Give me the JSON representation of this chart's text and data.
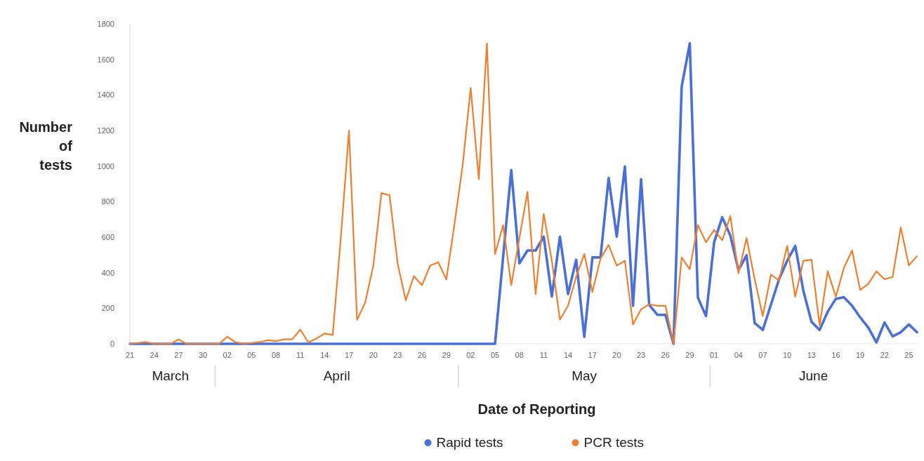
{
  "chart_data": {
    "type": "line",
    "xlabel": "Date of Reporting",
    "ylabel": "Number of tests",
    "x": [
      "--03-21",
      "--03-22",
      "--03-23",
      "--03-24",
      "--03-25",
      "--03-26",
      "--03-27",
      "--03-28",
      "--03-29",
      "--03-30",
      "--03-31",
      "--04-01",
      "--04-02",
      "--04-03",
      "--04-04",
      "--04-05",
      "--04-06",
      "--04-07",
      "--04-08",
      "--04-09",
      "--04-10",
      "--04-11",
      "--04-12",
      "--04-13",
      "--04-14",
      "--04-15",
      "--04-16",
      "--04-17",
      "--04-18",
      "--04-19",
      "--04-20",
      "--04-21",
      "--04-22",
      "--04-23",
      "--04-24",
      "--04-25",
      "--04-26",
      "--04-27",
      "--04-28",
      "--04-29",
      "--04-30",
      "--05-01",
      "--05-02",
      "--05-03",
      "--05-04",
      "--05-05",
      "--05-06",
      "--05-07",
      "--05-08",
      "--05-09",
      "--05-10",
      "--05-11",
      "--05-12",
      "--05-13",
      "--05-14",
      "--05-15",
      "--05-16",
      "--05-17",
      "--05-18",
      "--05-19",
      "--05-20",
      "--05-21",
      "--05-22",
      "--05-23",
      "--05-24",
      "--05-25",
      "--05-26",
      "--05-27",
      "--05-28",
      "--05-29",
      "--05-30",
      "--05-31",
      "--06-01",
      "--06-02",
      "--06-03",
      "--06-04",
      "--06-05",
      "--06-06",
      "--06-07",
      "--06-08",
      "--06-09",
      "--06-10",
      "--06-11",
      "--06-12",
      "--06-13",
      "--06-14",
      "--06-15",
      "--06-16",
      "--06-17",
      "--06-18",
      "--06-19",
      "--06-20",
      "--06-21",
      "--06-22",
      "--06-23",
      "--06-24",
      "--06-25",
      "--06-26"
    ],
    "series": [
      {
        "name": "Rapid tests",
        "color": "#4a6fd6",
        "values": [
          0,
          0,
          0,
          0,
          0,
          0,
          0,
          0,
          0,
          0,
          0,
          0,
          0,
          0,
          0,
          0,
          0,
          0,
          0,
          0,
          0,
          0,
          0,
          0,
          0,
          0,
          0,
          0,
          0,
          0,
          0,
          0,
          0,
          0,
          0,
          0,
          0,
          0,
          0,
          0,
          0,
          0,
          0,
          0,
          0,
          0,
          490,
          978,
          453,
          525,
          525,
          603,
          266,
          603,
          280,
          473,
          39,
          486,
          486,
          933,
          603,
          998,
          214,
          926,
          220,
          163,
          163,
          0,
          1446,
          1690,
          260,
          156,
          571,
          712,
          609,
          415,
          498,
          117,
          78,
          220,
          363,
          467,
          551,
          298,
          124,
          78,
          181,
          253,
          262,
          214,
          149,
          91,
          8,
          120,
          42,
          65,
          109,
          65
        ]
      },
      {
        "name": "PCR tests",
        "color": "#ef7f2f",
        "values": [
          0,
          5,
          10,
          0,
          0,
          0,
          25,
          0,
          0,
          0,
          0,
          0,
          40,
          10,
          0,
          5,
          10,
          20,
          15,
          25,
          25,
          80,
          8,
          30,
          58,
          50,
          600,
          1200,
          135,
          233,
          440,
          848,
          836,
          450,
          245,
          381,
          330,
          440,
          459,
          362,
          673,
          1000,
          1439,
          926,
          1690,
          505,
          668,
          330,
          595,
          855,
          280,
          731,
          467,
          136,
          214,
          377,
          505,
          292,
          480,
          556,
          440,
          467,
          109,
          194,
          222,
          214,
          214,
          0,
          486,
          420,
          668,
          571,
          641,
          583,
          719,
          397,
          595,
          363,
          156,
          389,
          357,
          551,
          265,
          467,
          473,
          104,
          408,
          265,
          428,
          525,
          303,
          337,
          408,
          363,
          376,
          655,
          441,
          493
        ]
      }
    ],
    "xlim": [
      "--03-21",
      "--06-26"
    ],
    "xticks": [
      {
        "value": "--03-21",
        "label": "21"
      },
      {
        "value": "--03-24",
        "label": "24"
      },
      {
        "value": "--03-27",
        "label": "27"
      },
      {
        "value": "--03-30",
        "label": "30"
      },
      {
        "value": "--04-02",
        "label": "02"
      },
      {
        "value": "--04-05",
        "label": "05"
      },
      {
        "value": "--04-08",
        "label": "08"
      },
      {
        "value": "--04-11",
        "label": "11"
      },
      {
        "value": "--04-14",
        "label": "14"
      },
      {
        "value": "--04-17",
        "label": "17"
      },
      {
        "value": "--04-20",
        "label": "20"
      },
      {
        "value": "--04-23",
        "label": "23"
      },
      {
        "value": "--04-26",
        "label": "26"
      },
      {
        "value": "--04-29",
        "label": "29"
      },
      {
        "value": "--05-02",
        "label": "02"
      },
      {
        "value": "--05-05",
        "label": "05"
      },
      {
        "value": "--05-08",
        "label": "08"
      },
      {
        "value": "--05-11",
        "label": "11"
      },
      {
        "value": "--05-14",
        "label": "14"
      },
      {
        "value": "--05-17",
        "label": "17"
      },
      {
        "value": "--05-20",
        "label": "20"
      },
      {
        "value": "--05-23",
        "label": "23"
      },
      {
        "value": "--05-26",
        "label": "26"
      },
      {
        "value": "--05-29",
        "label": "29"
      },
      {
        "value": "--06-01",
        "label": "01"
      },
      {
        "value": "--06-04",
        "label": "04"
      },
      {
        "value": "--06-07",
        "label": "07"
      },
      {
        "value": "--06-10",
        "label": "10"
      },
      {
        "value": "--06-13",
        "label": "13"
      },
      {
        "value": "--06-16",
        "label": "16"
      },
      {
        "value": "--06-19",
        "label": "19"
      },
      {
        "value": "--06-22",
        "label": "22"
      },
      {
        "value": "--06-25",
        "label": "25"
      }
    ],
    "ylim": [
      0,
      1800
    ],
    "yticks": [
      0,
      200,
      400,
      600,
      800,
      1000,
      1200,
      1400,
      1600,
      1800
    ],
    "annotations": [
      "March",
      "April",
      "May",
      "June"
    ],
    "legend": "bottom",
    "marker": "none",
    "line_style": "solid"
  }
}
